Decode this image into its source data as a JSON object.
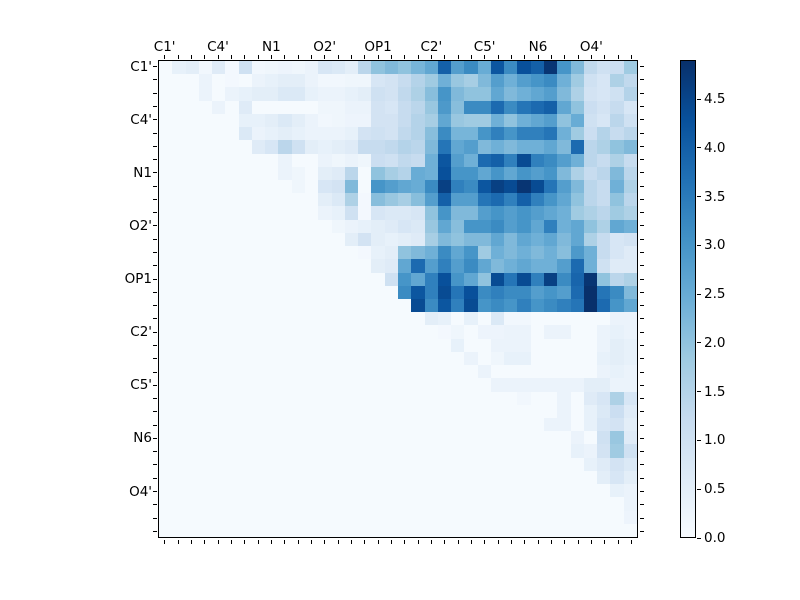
{
  "figure": {
    "background": "#ffffff",
    "frame_color": "#000000",
    "text_color": "#000000"
  },
  "chart_data": {
    "type": "heatmap",
    "title": "",
    "xlabel": "",
    "ylabel": "",
    "grid_size": 36,
    "group_size": 4,
    "x_tick_labels": [
      "C1'",
      "C4'",
      "N1",
      "O2'",
      "OP1",
      "C2'",
      "C5'",
      "N6",
      "O4'"
    ],
    "y_tick_labels": [
      "C1'",
      "C4'",
      "N1",
      "O2'",
      "OP1",
      "C2'",
      "C5'",
      "N6",
      "O4'"
    ],
    "tick_label_rows": [
      0,
      4,
      8,
      12,
      16,
      20,
      24,
      28,
      32
    ],
    "colormap": "Blues",
    "colormap_anchors": [
      "#f7fbff",
      "#deebf7",
      "#c6dbef",
      "#9ecae1",
      "#6baed6",
      "#4292c6",
      "#2171b5",
      "#08519c",
      "#08306b"
    ],
    "vmin": 0.0,
    "vmax": 4.9,
    "colorbar": {
      "tick_values": [
        0.0,
        0.5,
        1.0,
        1.5,
        2.0,
        2.5,
        3.0,
        3.5,
        4.0,
        4.5
      ],
      "tick_labels": [
        "0.0",
        "0.5",
        "1.0",
        "1.5",
        "2.0",
        "2.5",
        "3.0",
        "3.5",
        "4.0",
        "4.5"
      ]
    },
    "matrix": [
      [
        0.05,
        0.4,
        0.5,
        0.15,
        0.6,
        0.1,
        1.0,
        0.15,
        0.2,
        0.25,
        0.2,
        0.3,
        0.8,
        0.7,
        0.5,
        1.4,
        2.0,
        2.2,
        2.0,
        2.3,
        2.6,
        4.0,
        2.8,
        3.2,
        2.5,
        4.2,
        3.2,
        4.3,
        4.0,
        4.8,
        3.0,
        2.2,
        1.3,
        1.0,
        1.1,
        1.8
      ],
      [
        0.05,
        0.05,
        0.05,
        0.3,
        0.05,
        0.1,
        0.05,
        0.3,
        0.4,
        0.5,
        0.5,
        0.3,
        0.15,
        0.15,
        0.2,
        0.2,
        0.8,
        0.9,
        1.2,
        1.5,
        1.8,
        2.4,
        1.9,
        1.7,
        2.2,
        2.8,
        2.4,
        2.8,
        3.0,
        3.2,
        2.4,
        1.8,
        1.0,
        0.8,
        1.6,
        1.3
      ],
      [
        0.05,
        0.05,
        0.05,
        0.3,
        0.05,
        0.3,
        0.4,
        0.5,
        0.5,
        0.7,
        0.7,
        0.4,
        0.3,
        0.3,
        0.4,
        0.5,
        1.0,
        0.9,
        1.3,
        1.6,
        2.1,
        3.0,
        2.2,
        2.0,
        2.0,
        2.6,
        2.2,
        2.4,
        2.6,
        2.8,
        2.2,
        1.6,
        0.9,
        0.8,
        1.0,
        1.5
      ],
      [
        0.05,
        0.05,
        0.05,
        0.05,
        0.3,
        0.05,
        0.6,
        0.05,
        0.05,
        0.05,
        0.05,
        0.05,
        0.2,
        0.2,
        0.3,
        0.3,
        0.9,
        0.8,
        1.2,
        1.4,
        1.9,
        2.9,
        2.1,
        3.2,
        3.2,
        3.8,
        3.2,
        3.6,
        3.8,
        4.0,
        2.6,
        2.0,
        1.1,
        0.9,
        1.2,
        0.8
      ],
      [
        0.05,
        0.05,
        0.05,
        0.05,
        0.05,
        0.05,
        0.4,
        0.4,
        0.5,
        0.7,
        0.5,
        0.3,
        0.15,
        0.2,
        0.25,
        0.25,
        0.9,
        0.9,
        1.2,
        1.5,
        1.7,
        2.6,
        1.9,
        1.8,
        1.8,
        2.4,
        2.0,
        2.4,
        2.6,
        2.8,
        2.0,
        2.5,
        1.0,
        0.8,
        1.4,
        1.0
      ],
      [
        0.05,
        0.05,
        0.05,
        0.05,
        0.05,
        0.05,
        0.7,
        0.3,
        0.4,
        0.5,
        0.4,
        0.3,
        0.3,
        0.3,
        0.4,
        0.9,
        1.0,
        0.9,
        1.3,
        1.5,
        2.1,
        3.2,
        2.3,
        2.3,
        3.0,
        3.4,
        3.0,
        3.4,
        3.4,
        3.6,
        2.4,
        1.8,
        1.1,
        1.5,
        1.2,
        1.4
      ],
      [
        0.05,
        0.05,
        0.05,
        0.05,
        0.05,
        0.05,
        0.05,
        0.6,
        0.8,
        1.4,
        1.0,
        0.5,
        0.4,
        0.5,
        0.6,
        1.2,
        1.2,
        1.3,
        1.5,
        1.4,
        2.2,
        3.6,
        2.6,
        2.8,
        2.2,
        2.4,
        2.2,
        2.4,
        2.4,
        2.6,
        2.2,
        3.8,
        1.4,
        1.6,
        2.0,
        2.2
      ],
      [
        0.05,
        0.05,
        0.05,
        0.05,
        0.05,
        0.05,
        0.05,
        0.05,
        0.05,
        0.3,
        0.05,
        0.05,
        0.3,
        0.2,
        0.3,
        0.2,
        1.1,
        1.0,
        1.3,
        1.2,
        2.4,
        4.2,
        2.8,
        2.4,
        3.8,
        4.0,
        3.4,
        4.4,
        3.4,
        3.2,
        2.8,
        2.4,
        1.4,
        1.2,
        1.6,
        1.2
      ],
      [
        0.05,
        0.05,
        0.05,
        0.05,
        0.05,
        0.05,
        0.05,
        0.05,
        0.05,
        0.3,
        0.2,
        0.05,
        0.5,
        0.6,
        1.4,
        0.05,
        2.0,
        1.7,
        1.5,
        2.5,
        2.4,
        4.3,
        3.0,
        3.0,
        2.6,
        3.0,
        2.6,
        3.0,
        2.8,
        3.0,
        2.2,
        1.6,
        1.2,
        1.4,
        2.2,
        1.4
      ],
      [
        0.05,
        0.05,
        0.05,
        0.05,
        0.05,
        0.05,
        0.05,
        0.05,
        0.05,
        0.05,
        0.2,
        0.05,
        0.8,
        0.9,
        2.2,
        0.05,
        3.0,
        2.8,
        2.6,
        2.5,
        3.2,
        4.6,
        3.4,
        3.2,
        4.2,
        4.6,
        4.4,
        4.8,
        4.4,
        3.6,
        2.8,
        2.2,
        1.4,
        1.2,
        2.4,
        1.6
      ],
      [
        0.05,
        0.05,
        0.05,
        0.05,
        0.05,
        0.05,
        0.05,
        0.05,
        0.05,
        0.05,
        0.05,
        0.05,
        0.5,
        0.7,
        1.6,
        0.1,
        2.1,
        1.9,
        1.7,
        2.1,
        2.8,
        4.0,
        2.8,
        2.8,
        3.6,
        3.8,
        3.4,
        4.0,
        3.4,
        3.0,
        2.6,
        2.0,
        1.4,
        1.2,
        2.0,
        1.4
      ],
      [
        0.05,
        0.05,
        0.05,
        0.05,
        0.05,
        0.05,
        0.05,
        0.05,
        0.05,
        0.05,
        0.05,
        0.05,
        0.3,
        0.4,
        1.0,
        0.1,
        0.8,
        0.7,
        0.7,
        0.8,
        2.0,
        3.0,
        2.2,
        2.2,
        2.8,
        3.0,
        2.8,
        3.0,
        2.8,
        2.6,
        2.4,
        1.8,
        1.6,
        1.4,
        1.8,
        1.6
      ],
      [
        0.05,
        0.05,
        0.05,
        0.05,
        0.05,
        0.05,
        0.05,
        0.05,
        0.05,
        0.05,
        0.05,
        0.05,
        0.05,
        0.2,
        0.3,
        0.4,
        0.5,
        0.6,
        0.8,
        0.7,
        1.9,
        2.6,
        2.1,
        3.0,
        3.0,
        3.2,
        2.8,
        3.0,
        2.6,
        3.4,
        2.4,
        2.6,
        2.0,
        1.6,
        2.6,
        2.4
      ],
      [
        0.05,
        0.05,
        0.05,
        0.05,
        0.05,
        0.05,
        0.05,
        0.05,
        0.05,
        0.05,
        0.05,
        0.05,
        0.05,
        0.05,
        0.5,
        0.9,
        0.5,
        0.4,
        0.5,
        0.6,
        1.7,
        2.2,
        2.0,
        2.2,
        2.2,
        2.6,
        2.2,
        2.6,
        2.4,
        2.6,
        2.2,
        2.6,
        1.6,
        1.2,
        0.8,
        0.9
      ],
      [
        0.05,
        0.05,
        0.05,
        0.05,
        0.05,
        0.05,
        0.05,
        0.05,
        0.05,
        0.05,
        0.05,
        0.05,
        0.05,
        0.05,
        0.05,
        0.1,
        0.4,
        0.5,
        2.0,
        2.2,
        2.4,
        3.2,
        2.6,
        3.0,
        1.8,
        2.4,
        2.2,
        2.4,
        2.2,
        2.4,
        2.1,
        2.9,
        2.4,
        1.2,
        0.8,
        0.6
      ],
      [
        0.05,
        0.05,
        0.05,
        0.05,
        0.05,
        0.05,
        0.05,
        0.05,
        0.05,
        0.05,
        0.05,
        0.05,
        0.05,
        0.05,
        0.05,
        0.05,
        0.5,
        0.6,
        2.6,
        3.8,
        2.8,
        3.4,
        2.8,
        3.2,
        2.6,
        2.2,
        2.4,
        2.6,
        2.4,
        2.4,
        2.8,
        3.8,
        2.4,
        1.0,
        0.6,
        0.6
      ],
      [
        0.05,
        0.05,
        0.05,
        0.05,
        0.05,
        0.05,
        0.05,
        0.05,
        0.05,
        0.05,
        0.05,
        0.05,
        0.05,
        0.05,
        0.05,
        0.05,
        0.05,
        1.0,
        3.0,
        2.6,
        3.4,
        4.3,
        3.0,
        2.6,
        2.0,
        4.4,
        3.6,
        4.4,
        3.4,
        4.6,
        3.2,
        3.9,
        4.8,
        2.0,
        1.4,
        1.6
      ],
      [
        0.05,
        0.05,
        0.05,
        0.05,
        0.05,
        0.05,
        0.05,
        0.05,
        0.05,
        0.05,
        0.05,
        0.05,
        0.05,
        0.05,
        0.05,
        0.05,
        0.05,
        0.05,
        3.2,
        4.2,
        3.4,
        4.4,
        3.6,
        4.3,
        3.2,
        3.4,
        3.2,
        3.2,
        2.8,
        3.0,
        2.8,
        3.8,
        4.9,
        3.6,
        3.2,
        2.2
      ],
      [
        0.05,
        0.05,
        0.05,
        0.05,
        0.05,
        0.05,
        0.05,
        0.05,
        0.05,
        0.05,
        0.05,
        0.05,
        0.05,
        0.05,
        0.05,
        0.05,
        0.05,
        0.05,
        0.05,
        4.4,
        3.2,
        4.2,
        3.4,
        4.4,
        3.0,
        3.2,
        3.0,
        3.4,
        3.0,
        3.2,
        3.4,
        3.6,
        4.9,
        3.8,
        3.0,
        2.6
      ],
      [
        0.05,
        0.05,
        0.05,
        0.05,
        0.05,
        0.05,
        0.05,
        0.05,
        0.05,
        0.05,
        0.05,
        0.05,
        0.05,
        0.05,
        0.05,
        0.05,
        0.05,
        0.05,
        0.05,
        0.05,
        0.5,
        0.4,
        0.05,
        0.4,
        0.05,
        0.7,
        0.15,
        0.15,
        0.05,
        0.05,
        0.05,
        0.05,
        0.05,
        0.05,
        0.3,
        0.3
      ],
      [
        0.05,
        0.05,
        0.05,
        0.05,
        0.05,
        0.05,
        0.05,
        0.05,
        0.05,
        0.05,
        0.05,
        0.05,
        0.05,
        0.05,
        0.05,
        0.05,
        0.05,
        0.05,
        0.05,
        0.05,
        0.05,
        0.1,
        0.2,
        0.05,
        0.25,
        0.25,
        0.3,
        0.3,
        0.05,
        0.3,
        0.3,
        0.05,
        0.05,
        0.3,
        0.4,
        0.3
      ],
      [
        0.05,
        0.05,
        0.05,
        0.05,
        0.05,
        0.05,
        0.05,
        0.05,
        0.05,
        0.05,
        0.05,
        0.05,
        0.05,
        0.05,
        0.05,
        0.05,
        0.05,
        0.05,
        0.05,
        0.05,
        0.05,
        0.05,
        0.4,
        0.05,
        0.05,
        0.3,
        0.3,
        0.3,
        0.05,
        0.05,
        0.05,
        0.05,
        0.05,
        0.3,
        0.5,
        0.4
      ],
      [
        0.05,
        0.05,
        0.05,
        0.05,
        0.05,
        0.05,
        0.05,
        0.05,
        0.05,
        0.05,
        0.05,
        0.05,
        0.05,
        0.05,
        0.05,
        0.05,
        0.05,
        0.05,
        0.05,
        0.05,
        0.05,
        0.05,
        0.05,
        0.3,
        0.05,
        0.2,
        0.4,
        0.4,
        0.05,
        0.05,
        0.05,
        0.05,
        0.05,
        0.4,
        0.5,
        0.4
      ],
      [
        0.05,
        0.05,
        0.05,
        0.05,
        0.05,
        0.05,
        0.05,
        0.05,
        0.05,
        0.05,
        0.05,
        0.05,
        0.05,
        0.05,
        0.05,
        0.05,
        0.05,
        0.05,
        0.05,
        0.05,
        0.05,
        0.05,
        0.05,
        0.05,
        0.3,
        0.05,
        0.05,
        0.05,
        0.05,
        0.05,
        0.05,
        0.05,
        0.05,
        0.3,
        0.4,
        0.3
      ],
      [
        0.05,
        0.05,
        0.05,
        0.05,
        0.05,
        0.05,
        0.05,
        0.05,
        0.05,
        0.05,
        0.05,
        0.05,
        0.05,
        0.05,
        0.05,
        0.05,
        0.05,
        0.05,
        0.05,
        0.05,
        0.05,
        0.05,
        0.05,
        0.05,
        0.05,
        0.3,
        0.3,
        0.3,
        0.3,
        0.3,
        0.3,
        0.3,
        0.5,
        0.5,
        0.3,
        0.3
      ],
      [
        0.05,
        0.05,
        0.05,
        0.05,
        0.05,
        0.05,
        0.05,
        0.05,
        0.05,
        0.05,
        0.05,
        0.05,
        0.05,
        0.05,
        0.05,
        0.05,
        0.05,
        0.05,
        0.05,
        0.05,
        0.05,
        0.05,
        0.05,
        0.05,
        0.05,
        0.05,
        0.05,
        0.15,
        0.05,
        0.05,
        0.3,
        0.05,
        0.6,
        0.8,
        1.6,
        0.8
      ],
      [
        0.05,
        0.05,
        0.05,
        0.05,
        0.05,
        0.05,
        0.05,
        0.05,
        0.05,
        0.05,
        0.05,
        0.05,
        0.05,
        0.05,
        0.05,
        0.05,
        0.05,
        0.05,
        0.05,
        0.05,
        0.05,
        0.05,
        0.05,
        0.05,
        0.05,
        0.05,
        0.05,
        0.05,
        0.05,
        0.05,
        0.3,
        0.05,
        0.4,
        0.7,
        1.1,
        0.6
      ],
      [
        0.05,
        0.05,
        0.05,
        0.05,
        0.05,
        0.05,
        0.05,
        0.05,
        0.05,
        0.05,
        0.05,
        0.05,
        0.05,
        0.05,
        0.05,
        0.05,
        0.05,
        0.05,
        0.05,
        0.05,
        0.05,
        0.05,
        0.05,
        0.05,
        0.05,
        0.05,
        0.05,
        0.05,
        0.05,
        0.3,
        0.3,
        0.05,
        0.4,
        0.8,
        0.9,
        0.5
      ],
      [
        0.05,
        0.05,
        0.05,
        0.05,
        0.05,
        0.05,
        0.05,
        0.05,
        0.05,
        0.05,
        0.05,
        0.05,
        0.05,
        0.05,
        0.05,
        0.05,
        0.05,
        0.05,
        0.05,
        0.05,
        0.05,
        0.05,
        0.05,
        0.05,
        0.05,
        0.05,
        0.05,
        0.05,
        0.05,
        0.05,
        0.05,
        0.3,
        0.05,
        1.0,
        1.9,
        0.6
      ],
      [
        0.05,
        0.05,
        0.05,
        0.05,
        0.05,
        0.05,
        0.05,
        0.05,
        0.05,
        0.05,
        0.05,
        0.05,
        0.05,
        0.05,
        0.05,
        0.05,
        0.05,
        0.05,
        0.05,
        0.05,
        0.05,
        0.05,
        0.05,
        0.05,
        0.05,
        0.05,
        0.05,
        0.05,
        0.05,
        0.05,
        0.05,
        0.4,
        0.3,
        0.9,
        1.8,
        1.0
      ],
      [
        0.05,
        0.05,
        0.05,
        0.05,
        0.05,
        0.05,
        0.05,
        0.05,
        0.05,
        0.05,
        0.05,
        0.05,
        0.05,
        0.05,
        0.05,
        0.05,
        0.05,
        0.05,
        0.05,
        0.05,
        0.05,
        0.05,
        0.05,
        0.05,
        0.05,
        0.05,
        0.05,
        0.05,
        0.05,
        0.05,
        0.05,
        0.05,
        0.4,
        0.6,
        0.9,
        0.7
      ],
      [
        0.05,
        0.05,
        0.05,
        0.05,
        0.05,
        0.05,
        0.05,
        0.05,
        0.05,
        0.05,
        0.05,
        0.05,
        0.05,
        0.05,
        0.05,
        0.05,
        0.05,
        0.05,
        0.05,
        0.05,
        0.05,
        0.05,
        0.05,
        0.05,
        0.05,
        0.05,
        0.05,
        0.05,
        0.05,
        0.05,
        0.05,
        0.05,
        0.05,
        0.5,
        0.8,
        0.5
      ],
      [
        0.05,
        0.05,
        0.05,
        0.05,
        0.05,
        0.05,
        0.05,
        0.05,
        0.05,
        0.05,
        0.05,
        0.05,
        0.05,
        0.05,
        0.05,
        0.05,
        0.05,
        0.05,
        0.05,
        0.05,
        0.05,
        0.05,
        0.05,
        0.05,
        0.05,
        0.05,
        0.05,
        0.05,
        0.05,
        0.05,
        0.05,
        0.05,
        0.05,
        0.05,
        0.4,
        0.3
      ],
      [
        0.05,
        0.05,
        0.05,
        0.05,
        0.05,
        0.05,
        0.05,
        0.05,
        0.05,
        0.05,
        0.05,
        0.05,
        0.05,
        0.05,
        0.05,
        0.05,
        0.05,
        0.05,
        0.05,
        0.05,
        0.05,
        0.05,
        0.05,
        0.05,
        0.05,
        0.05,
        0.05,
        0.05,
        0.05,
        0.05,
        0.05,
        0.05,
        0.05,
        0.05,
        0.05,
        0.3
      ],
      [
        0.05,
        0.05,
        0.05,
        0.05,
        0.05,
        0.05,
        0.05,
        0.05,
        0.05,
        0.05,
        0.05,
        0.05,
        0.05,
        0.05,
        0.05,
        0.05,
        0.05,
        0.05,
        0.05,
        0.05,
        0.05,
        0.05,
        0.05,
        0.05,
        0.05,
        0.05,
        0.05,
        0.05,
        0.05,
        0.05,
        0.05,
        0.05,
        0.05,
        0.05,
        0.05,
        0.25
      ],
      [
        0.05,
        0.05,
        0.05,
        0.05,
        0.05,
        0.05,
        0.05,
        0.05,
        0.05,
        0.05,
        0.05,
        0.05,
        0.05,
        0.05,
        0.05,
        0.05,
        0.05,
        0.05,
        0.05,
        0.05,
        0.05,
        0.05,
        0.05,
        0.05,
        0.05,
        0.05,
        0.05,
        0.05,
        0.05,
        0.05,
        0.05,
        0.05,
        0.05,
        0.05,
        0.05,
        0.05
      ]
    ]
  }
}
